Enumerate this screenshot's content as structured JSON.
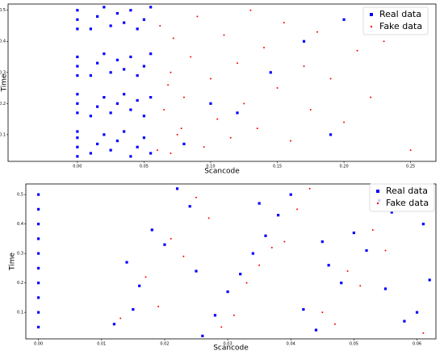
{
  "chart_data": [
    {
      "type": "scatter",
      "x_label": "Scancode",
      "y_label": "Time",
      "xlim": [
        -0.052,
        0.269
      ],
      "ylim": [
        0.014,
        0.52
      ],
      "xticks": [
        {
          "value": 0,
          "label": "0.00"
        },
        {
          "value": 0.05,
          "label": "0.05"
        },
        {
          "value": 0.1,
          "label": "0.10"
        },
        {
          "value": 0.15,
          "label": "0.15"
        },
        {
          "value": 0.2,
          "label": "0.20"
        },
        {
          "value": 0.25,
          "label": "0.25"
        }
      ],
      "yticks": [
        0.1,
        0.2,
        0.3,
        0.4,
        0.5
      ],
      "legend": "upper right",
      "series": [
        {
          "name": "Real data",
          "color": "#0000ff",
          "x": [
            0,
            0,
            0,
            0,
            0,
            0,
            0,
            0,
            0,
            0,
            0,
            0,
            0,
            0.01,
            0.015,
            0.02,
            0.025,
            0.03,
            0.035,
            0.04,
            0.045,
            0.05,
            0.055,
            0.01,
            0.015,
            0.02,
            0.025,
            0.03,
            0.035,
            0.04,
            0.045,
            0.05,
            0.055,
            0.01,
            0.015,
            0.02,
            0.025,
            0.03,
            0.035,
            0.04,
            0.045,
            0.05,
            0.055,
            0.01,
            0.015,
            0.02,
            0.025,
            0.03,
            0.035,
            0.04,
            0.045,
            0.05,
            0.055,
            0.08,
            0.1,
            0.12,
            0.145,
            0.19,
            0.2,
            0.17
          ],
          "values": [
            0.03,
            0.06,
            0.09,
            0.11,
            0.17,
            0.2,
            0.23,
            0.29,
            0.32,
            0.35,
            0.44,
            0.47,
            0.5,
            0.04,
            0.07,
            0.1,
            0.05,
            0.08,
            0.11,
            0.03,
            0.06,
            0.09,
            0.04,
            0.16,
            0.19,
            0.22,
            0.17,
            0.2,
            0.23,
            0.18,
            0.21,
            0.16,
            0.22,
            0.29,
            0.33,
            0.36,
            0.3,
            0.34,
            0.31,
            0.35,
            0.29,
            0.32,
            0.36,
            0.44,
            0.48,
            0.51,
            0.45,
            0.49,
            0.46,
            0.5,
            0.44,
            0.47,
            0.51,
            0.07,
            0.2,
            0.17,
            0.3,
            0.1,
            0.47,
            0.4
          ]
        },
        {
          "name": "Fake data",
          "color": "#ff0000",
          "x": [
            0.06,
            0.065,
            0.07,
            0.062,
            0.075,
            0.08,
            0.085,
            0.09,
            0.095,
            0.1,
            0.105,
            0.11,
            0.115,
            0.12,
            0.125,
            0.13,
            0.135,
            0.14,
            0.15,
            0.155,
            0.16,
            0.17,
            0.175,
            0.18,
            0.19,
            0.2,
            0.21,
            0.22,
            0.23,
            0.25,
            0.07,
            0.068,
            0.072,
            0.078
          ],
          "values": [
            0.05,
            0.18,
            0.3,
            0.45,
            0.1,
            0.22,
            0.35,
            0.48,
            0.06,
            0.28,
            0.15,
            0.42,
            0.09,
            0.33,
            0.2,
            0.5,
            0.12,
            0.38,
            0.25,
            0.46,
            0.08,
            0.32,
            0.18,
            0.43,
            0.28,
            0.14,
            0.37,
            0.22,
            0.4,
            0.05,
            0.04,
            0.26,
            0.41,
            0.12
          ]
        }
      ]
    },
    {
      "type": "scatter",
      "x_label": "Scancode",
      "y_label": "Time",
      "xlim": [
        -0.002,
        0.063
      ],
      "ylim": [
        0.01,
        0.536
      ],
      "xticks": [
        {
          "value": 0,
          "label": "0.00"
        },
        {
          "value": 0.01,
          "label": "0.01"
        },
        {
          "value": 0.02,
          "label": "0.02"
        },
        {
          "value": 0.03,
          "label": "0.03"
        },
        {
          "value": 0.04,
          "label": "0.04"
        },
        {
          "value": 0.05,
          "label": "0.05"
        },
        {
          "value": 0.06,
          "label": "0.06"
        }
      ],
      "yticks": [
        0.1,
        0.2,
        0.3,
        0.4,
        0.5
      ],
      "legend": "upper right",
      "series": [
        {
          "name": "Real data",
          "color": "#0000ff",
          "x": [
            0,
            0,
            0,
            0,
            0,
            0,
            0,
            0,
            0,
            0,
            0.012,
            0.016,
            0.02,
            0.024,
            0.028,
            0.032,
            0.036,
            0.04,
            0.044,
            0.048,
            0.052,
            0.056,
            0.06,
            0.014,
            0.018,
            0.022,
            0.026,
            0.03,
            0.034,
            0.038,
            0.042,
            0.046,
            0.05,
            0.054,
            0.058,
            0.062,
            0.015,
            0.025,
            0.035,
            0.045,
            0.055,
            0.061
          ],
          "values": [
            0.05,
            0.1,
            0.15,
            0.2,
            0.25,
            0.3,
            0.35,
            0.4,
            0.45,
            0.5,
            0.06,
            0.19,
            0.33,
            0.46,
            0.09,
            0.23,
            0.36,
            0.5,
            0.04,
            0.2,
            0.31,
            0.44,
            0.1,
            0.27,
            0.38,
            0.52,
            0.02,
            0.17,
            0.3,
            0.43,
            0.11,
            0.26,
            0.37,
            0.48,
            0.07,
            0.21,
            0.11,
            0.24,
            0.47,
            0.34,
            0.18,
            0.4
          ]
        },
        {
          "name": "Fake data",
          "color": "#ff0000",
          "x": [
            0.013,
            0.017,
            0.021,
            0.025,
            0.029,
            0.033,
            0.037,
            0.041,
            0.045,
            0.049,
            0.053,
            0.057,
            0.061,
            0.019,
            0.023,
            0.027,
            0.031,
            0.035,
            0.039,
            0.043,
            0.047,
            0.051,
            0.055,
            0.059
          ],
          "values": [
            0.08,
            0.22,
            0.35,
            0.49,
            0.05,
            0.2,
            0.32,
            0.45,
            0.1,
            0.24,
            0.38,
            0.51,
            0.03,
            0.12,
            0.29,
            0.42,
            0.09,
            0.26,
            0.34,
            0.52,
            0.06,
            0.19,
            0.31,
            0.46
          ]
        }
      ]
    }
  ]
}
